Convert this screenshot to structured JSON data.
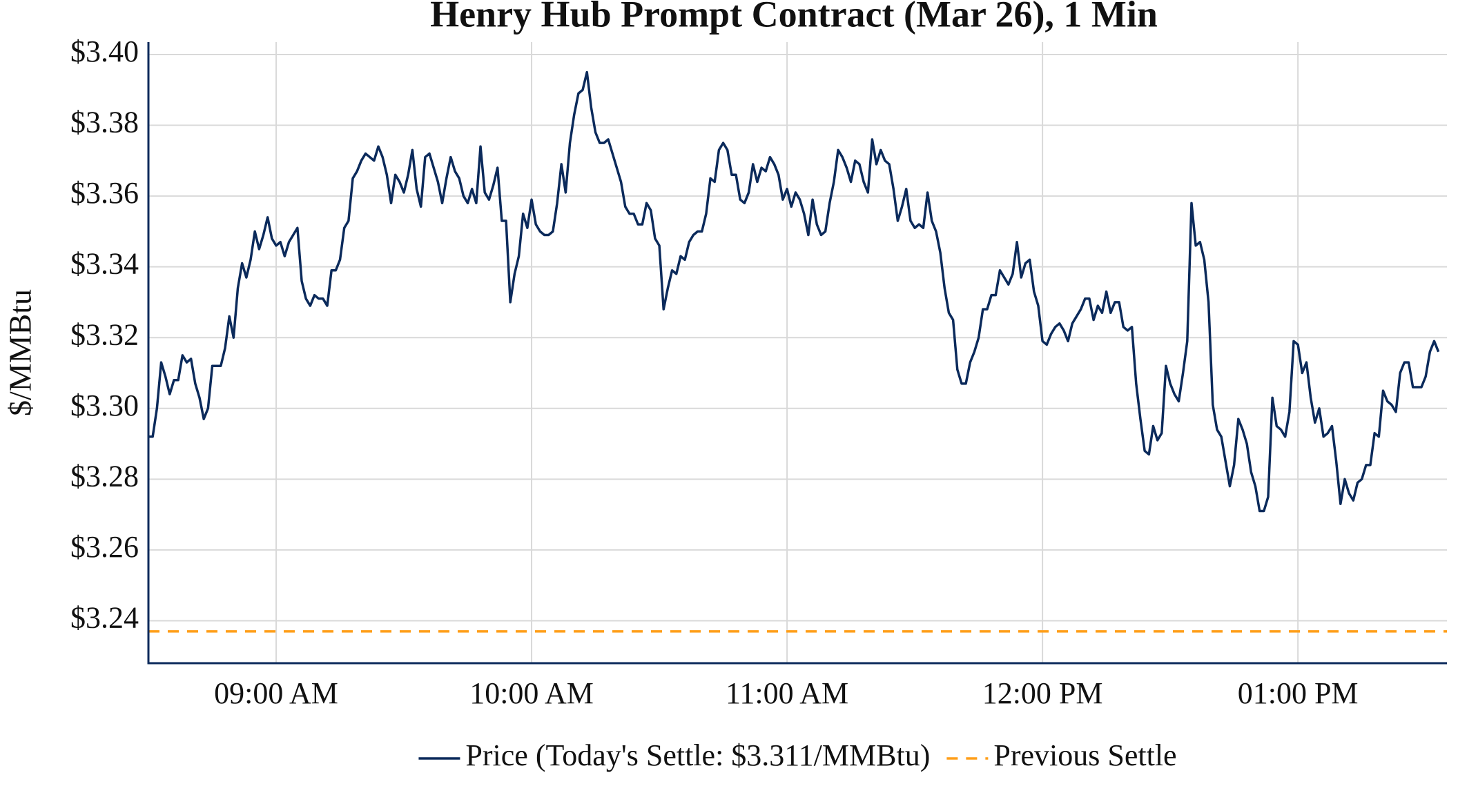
{
  "chart_data": {
    "type": "line",
    "title": "Henry Hub Prompt Contract (Mar 26), 1 Min",
    "y_label": "$/MMBtu",
    "grid": true,
    "legend": "bottom",
    "xlim": [
      "08:30",
      "13:35"
    ],
    "xticks": [
      {
        "value": "09:00",
        "label": "09:00 AM"
      },
      {
        "value": "10:00",
        "label": "10:00 AM"
      },
      {
        "value": "11:00",
        "label": "11:00 AM"
      },
      {
        "value": "12:00",
        "label": "12:00 PM"
      },
      {
        "value": "13:00",
        "label": "01:00 PM"
      }
    ],
    "ylim": [
      3.228,
      3.4035
    ],
    "yticks": [
      {
        "value": 3.24,
        "label": "$3.24"
      },
      {
        "value": 3.26,
        "label": "$3.26"
      },
      {
        "value": 3.28,
        "label": "$3.28"
      },
      {
        "value": 3.3,
        "label": "$3.30"
      },
      {
        "value": 3.32,
        "label": "$3.32"
      },
      {
        "value": 3.34,
        "label": "$3.34"
      },
      {
        "value": 3.36,
        "label": "$3.36"
      },
      {
        "value": 3.38,
        "label": "$3.38"
      },
      {
        "value": 3.4,
        "label": "$3.40"
      }
    ],
    "x": [
      "08:30",
      "08:31",
      "08:32",
      "08:33",
      "08:34",
      "08:35",
      "08:36",
      "08:37",
      "08:38",
      "08:39",
      "08:40",
      "08:41",
      "08:42",
      "08:43",
      "08:44",
      "08:45",
      "08:46",
      "08:47",
      "08:48",
      "08:49",
      "08:50",
      "08:51",
      "08:52",
      "08:53",
      "08:54",
      "08:55",
      "08:56",
      "08:57",
      "08:58",
      "08:59",
      "09:00",
      "09:01",
      "09:02",
      "09:03",
      "09:04",
      "09:05",
      "09:06",
      "09:07",
      "09:08",
      "09:09",
      "09:10",
      "09:11",
      "09:12",
      "09:13",
      "09:14",
      "09:15",
      "09:16",
      "09:17",
      "09:18",
      "09:19",
      "09:20",
      "09:21",
      "09:22",
      "09:23",
      "09:24",
      "09:25",
      "09:26",
      "09:27",
      "09:28",
      "09:29",
      "09:30",
      "09:31",
      "09:32",
      "09:33",
      "09:34",
      "09:35",
      "09:36",
      "09:37",
      "09:38",
      "09:39",
      "09:40",
      "09:41",
      "09:42",
      "09:43",
      "09:44",
      "09:45",
      "09:46",
      "09:47",
      "09:48",
      "09:49",
      "09:50",
      "09:51",
      "09:52",
      "09:53",
      "09:54",
      "09:55",
      "09:56",
      "09:57",
      "09:58",
      "09:59",
      "10:00",
      "10:01",
      "10:02",
      "10:03",
      "10:04",
      "10:05",
      "10:06",
      "10:07",
      "10:08",
      "10:09",
      "10:10",
      "10:11",
      "10:12",
      "10:13",
      "10:14",
      "10:15",
      "10:16",
      "10:17",
      "10:18",
      "10:19",
      "10:20",
      "10:21",
      "10:22",
      "10:23",
      "10:24",
      "10:25",
      "10:26",
      "10:27",
      "10:28",
      "10:29",
      "10:30",
      "10:31",
      "10:32",
      "10:33",
      "10:34",
      "10:35",
      "10:36",
      "10:37",
      "10:38",
      "10:39",
      "10:40",
      "10:41",
      "10:42",
      "10:43",
      "10:44",
      "10:45",
      "10:46",
      "10:47",
      "10:48",
      "10:49",
      "10:50",
      "10:51",
      "10:52",
      "10:53",
      "10:54",
      "10:55",
      "10:56",
      "10:57",
      "10:58",
      "10:59",
      "11:00",
      "11:01",
      "11:02",
      "11:03",
      "11:04",
      "11:05",
      "11:06",
      "11:07",
      "11:08",
      "11:09",
      "11:10",
      "11:11",
      "11:12",
      "11:13",
      "11:14",
      "11:15",
      "11:16",
      "11:17",
      "11:18",
      "11:19",
      "11:20",
      "11:21",
      "11:22",
      "11:23",
      "11:24",
      "11:25",
      "11:26",
      "11:27",
      "11:28",
      "11:29",
      "11:30",
      "11:31",
      "11:32",
      "11:33",
      "11:34",
      "11:35",
      "11:36",
      "11:37",
      "11:38",
      "11:39",
      "11:40",
      "11:41",
      "11:42",
      "11:43",
      "11:44",
      "11:45",
      "11:46",
      "11:47",
      "11:48",
      "11:49",
      "11:50",
      "11:51",
      "11:52",
      "11:53",
      "11:54",
      "11:55",
      "11:56",
      "11:57",
      "11:58",
      "11:59",
      "12:00",
      "12:01",
      "12:02",
      "12:03",
      "12:04",
      "12:05",
      "12:06",
      "12:07",
      "12:08",
      "12:09",
      "12:10",
      "12:11",
      "12:12",
      "12:13",
      "12:14",
      "12:15",
      "12:16",
      "12:17",
      "12:18",
      "12:19",
      "12:20",
      "12:21",
      "12:22",
      "12:23",
      "12:24",
      "12:25",
      "12:26",
      "12:27",
      "12:28",
      "12:29",
      "12:30",
      "12:31",
      "12:32",
      "12:33",
      "12:34",
      "12:35",
      "12:36",
      "12:37",
      "12:38",
      "12:39",
      "12:40",
      "12:41",
      "12:42",
      "12:43",
      "12:44",
      "12:45",
      "12:46",
      "12:47",
      "12:48",
      "12:49",
      "12:50",
      "12:51",
      "12:52",
      "12:53",
      "12:54",
      "12:55",
      "12:56",
      "12:57",
      "12:58",
      "12:59",
      "13:00",
      "13:01",
      "13:02",
      "13:03",
      "13:04",
      "13:05",
      "13:06",
      "13:07",
      "13:08",
      "13:09",
      "13:10",
      "13:11",
      "13:12",
      "13:13",
      "13:14",
      "13:15",
      "13:16",
      "13:17",
      "13:18",
      "13:19",
      "13:20",
      "13:21",
      "13:22",
      "13:23",
      "13:24",
      "13:25",
      "13:26",
      "13:27",
      "13:28",
      "13:29",
      "13:30",
      "13:31",
      "13:32",
      "13:33"
    ],
    "series": [
      {
        "name": "Price (Today's Settle: $3.311/MMBtu)",
        "color": "#0b2a5b",
        "values": [
          3.292,
          3.292,
          3.3,
          3.313,
          3.309,
          3.304,
          3.308,
          3.308,
          3.315,
          3.313,
          3.314,
          3.307,
          3.303,
          3.297,
          3.3,
          3.312,
          3.312,
          3.312,
          3.317,
          3.326,
          3.32,
          3.334,
          3.341,
          3.337,
          3.342,
          3.35,
          3.345,
          3.349,
          3.354,
          3.348,
          3.346,
          3.347,
          3.343,
          3.347,
          3.349,
          3.351,
          3.336,
          3.331,
          3.329,
          3.332,
          3.331,
          3.331,
          3.329,
          3.339,
          3.339,
          3.342,
          3.351,
          3.353,
          3.365,
          3.367,
          3.37,
          3.372,
          3.371,
          3.37,
          3.374,
          3.371,
          3.366,
          3.358,
          3.366,
          3.364,
          3.361,
          3.366,
          3.373,
          3.362,
          3.357,
          3.371,
          3.372,
          3.368,
          3.364,
          3.358,
          3.365,
          3.371,
          3.367,
          3.365,
          3.36,
          3.358,
          3.362,
          3.358,
          3.374,
          3.361,
          3.359,
          3.363,
          3.368,
          3.353,
          3.353,
          3.33,
          3.338,
          3.343,
          3.355,
          3.351,
          3.359,
          3.352,
          3.35,
          3.349,
          3.349,
          3.35,
          3.358,
          3.369,
          3.361,
          3.375,
          3.383,
          3.389,
          3.39,
          3.395,
          3.385,
          3.378,
          3.375,
          3.375,
          3.376,
          3.372,
          3.368,
          3.364,
          3.357,
          3.355,
          3.355,
          3.352,
          3.352,
          3.358,
          3.356,
          3.348,
          3.346,
          3.328,
          3.334,
          3.339,
          3.338,
          3.343,
          3.342,
          3.347,
          3.349,
          3.35,
          3.35,
          3.355,
          3.365,
          3.364,
          3.373,
          3.375,
          3.373,
          3.366,
          3.366,
          3.359,
          3.358,
          3.361,
          3.369,
          3.364,
          3.368,
          3.367,
          3.371,
          3.369,
          3.366,
          3.359,
          3.362,
          3.357,
          3.361,
          3.359,
          3.355,
          3.349,
          3.359,
          3.352,
          3.349,
          3.35,
          3.358,
          3.364,
          3.373,
          3.371,
          3.368,
          3.364,
          3.37,
          3.369,
          3.364,
          3.361,
          3.376,
          3.369,
          3.373,
          3.37,
          3.369,
          3.362,
          3.353,
          3.357,
          3.362,
          3.353,
          3.351,
          3.352,
          3.351,
          3.361,
          3.353,
          3.35,
          3.344,
          3.334,
          3.327,
          3.325,
          3.311,
          3.307,
          3.307,
          3.313,
          3.316,
          3.32,
          3.328,
          3.328,
          3.332,
          3.332,
          3.339,
          3.337,
          3.335,
          3.338,
          3.347,
          3.337,
          3.341,
          3.342,
          3.333,
          3.329,
          3.319,
          3.318,
          3.321,
          3.323,
          3.324,
          3.322,
          3.319,
          3.324,
          3.326,
          3.328,
          3.331,
          3.331,
          3.325,
          3.329,
          3.327,
          3.333,
          3.327,
          3.33,
          3.33,
          3.323,
          3.322,
          3.323,
          3.307,
          3.297,
          3.288,
          3.287,
          3.295,
          3.291,
          3.293,
          3.312,
          3.307,
          3.304,
          3.302,
          3.31,
          3.319,
          3.358,
          3.346,
          3.347,
          3.342,
          3.33,
          3.301,
          3.294,
          3.292,
          3.285,
          3.278,
          3.284,
          3.297,
          3.294,
          3.29,
          3.282,
          3.278,
          3.271,
          3.271,
          3.275,
          3.303,
          3.295,
          3.294,
          3.292,
          3.299,
          3.319,
          3.318,
          3.31,
          3.313,
          3.303,
          3.296,
          3.3,
          3.292,
          3.293,
          3.295,
          3.285,
          3.273,
          3.28,
          3.276,
          3.274,
          3.279,
          3.28,
          3.284,
          3.284,
          3.293,
          3.292,
          3.305,
          3.302,
          3.301,
          3.299,
          3.31,
          3.313,
          3.313,
          3.306,
          3.306,
          3.306,
          3.309,
          3.316,
          3.319,
          3.316
        ]
      }
    ],
    "hlines": [
      {
        "name": "Previous Settle",
        "value": 3.237,
        "color": "#ff9f1a",
        "style": "dashed"
      }
    ]
  }
}
